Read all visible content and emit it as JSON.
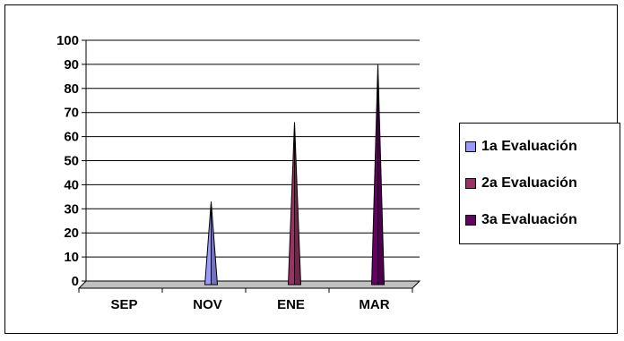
{
  "chart_data": {
    "type": "area",
    "categories": [
      "SEP",
      "NOV",
      "ENE",
      "MAR"
    ],
    "ylim": [
      0,
      100
    ],
    "yticks": [
      0,
      10,
      20,
      30,
      40,
      50,
      60,
      70,
      80,
      90,
      100
    ],
    "grid": true,
    "legend_position": "right",
    "series": [
      {
        "name": "1a Evaluación",
        "color": "#9999FF",
        "values": [
          0,
          33,
          0,
          0
        ]
      },
      {
        "name": "2a Evaluación",
        "color": "#993366",
        "values": [
          0,
          0,
          66,
          0
        ]
      },
      {
        "name": "3a Evaluación",
        "color": "#660066",
        "values": [
          0,
          0,
          0,
          90
        ]
      }
    ]
  }
}
